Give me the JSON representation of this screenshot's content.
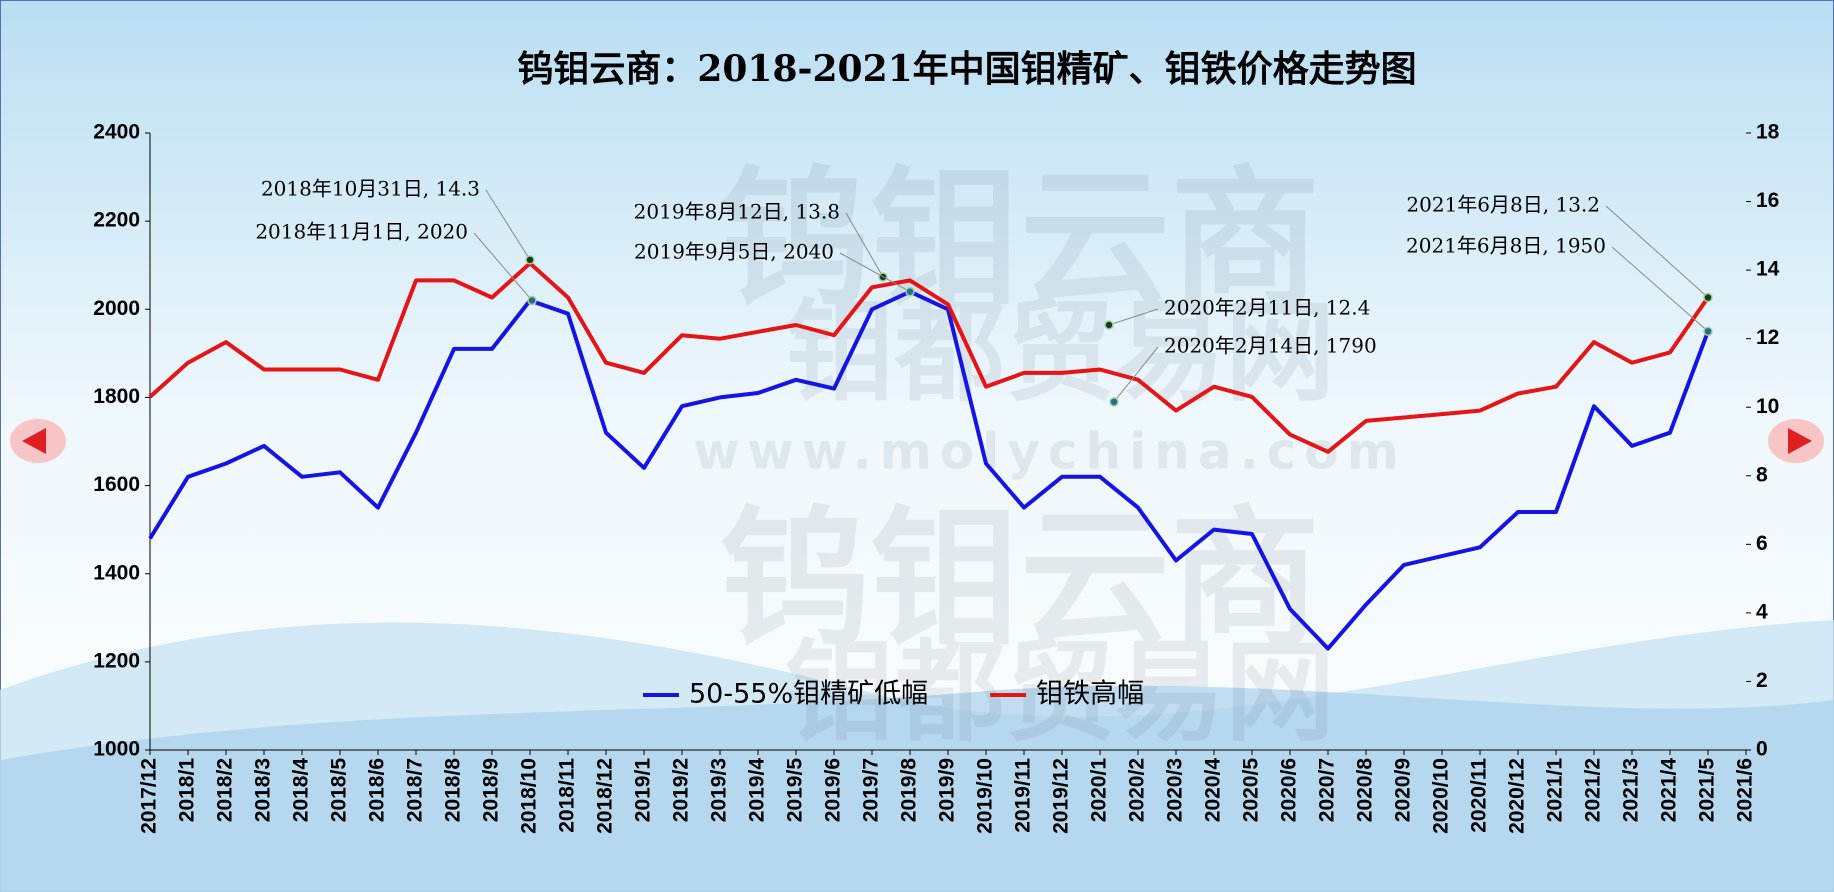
{
  "chart_data": {
    "type": "line",
    "title": "钨钼云商：2018-2021年中国钼精矿、钼铁价格走势图",
    "watermarks": [
      "钨钼云商",
      "钼都贸易网",
      "www.molychina.com"
    ],
    "categories": [
      "2017/12",
      "2018/1",
      "2018/2",
      "2018/3",
      "2018/4",
      "2018/5",
      "2018/6",
      "2018/7",
      "2018/8",
      "2018/9",
      "2018/10",
      "2018/11",
      "2018/12",
      "2019/1",
      "2019/2",
      "2019/3",
      "2019/4",
      "2019/5",
      "2019/6",
      "2019/7",
      "2019/8",
      "2019/9",
      "2019/10",
      "2019/11",
      "2019/12",
      "2020/1",
      "2020/2",
      "2020/3",
      "2020/4",
      "2020/5",
      "2020/6",
      "2020/7",
      "2020/8",
      "2020/9",
      "2020/10",
      "2020/11",
      "2020/12",
      "2021/1",
      "2021/2",
      "2021/3",
      "2021/4",
      "2021/5",
      "2021/6"
    ],
    "series": [
      {
        "name": "50-55%钼精矿低幅",
        "color": "#1414e6",
        "axis": "y",
        "values": [
          1480,
          1620,
          1650,
          1690,
          1620,
          1630,
          1550,
          1720,
          1910,
          1910,
          2020,
          1990,
          1720,
          1640,
          1780,
          1800,
          1810,
          1840,
          1820,
          2000,
          2040,
          2000,
          1650,
          1550,
          1620,
          1620,
          1550,
          1430,
          1500,
          1490,
          1320,
          1230,
          1330,
          1420,
          1440,
          1460,
          1540,
          1540,
          1780,
          1690,
          1720,
          1950,
          null
        ]
      },
      {
        "name": "钼铁高幅",
        "color": "#e61414",
        "axis": "y2",
        "values": [
          10.3,
          11.3,
          11.9,
          11.1,
          11.1,
          11.1,
          10.8,
          13.7,
          13.7,
          13.2,
          14.2,
          13.2,
          11.3,
          11.0,
          12.1,
          12.0,
          12.2,
          12.4,
          12.1,
          13.5,
          13.7,
          13.0,
          10.6,
          11.0,
          11.0,
          11.1,
          10.8,
          9.9,
          10.6,
          10.3,
          9.2,
          8.7,
          9.6,
          9.7,
          9.8,
          9.9,
          10.4,
          10.6,
          11.9,
          11.3,
          11.6,
          13.2,
          null
        ]
      }
    ],
    "ylim": [
      1000,
      2400
    ],
    "yticks": [
      1000,
      1200,
      1400,
      1600,
      1800,
      2000,
      2200,
      2400
    ],
    "y2lim": [
      0,
      18
    ],
    "y2ticks": [
      0,
      2,
      4,
      6,
      8,
      10,
      12,
      14,
      16,
      18
    ],
    "legend": "bottom-center",
    "annotations": [
      {
        "text": "2018年10月31日, 14.3",
        "value": 14.3,
        "axis": "y2"
      },
      {
        "text": "2018年11月1日, 2020",
        "value": 2020,
        "axis": "y"
      },
      {
        "text": "2019年8月12日, 13.8",
        "value": 13.8,
        "axis": "y2"
      },
      {
        "text": "2019年9月5日, 2040",
        "value": 2040,
        "axis": "y"
      },
      {
        "text": "2020年2月11日, 12.4",
        "value": 12.4,
        "axis": "y2"
      },
      {
        "text": "2020年2月14日, 1790",
        "value": 1790,
        "axis": "y"
      },
      {
        "text": "2021年6月8日, 13.2",
        "value": 13.2,
        "axis": "y2"
      },
      {
        "text": "2021年6月8日, 1950",
        "value": 1950,
        "axis": "y"
      }
    ]
  }
}
